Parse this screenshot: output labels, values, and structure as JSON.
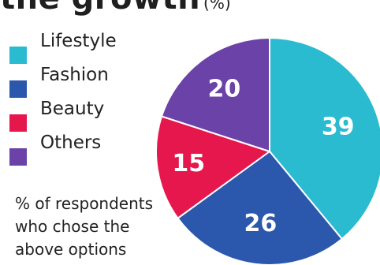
{
  "chart_data": {
    "type": "pie",
    "title": "the growth",
    "unit": "(%)",
    "note_lines": [
      "% of respondents",
      "who chose the",
      "above options"
    ],
    "slices": [
      {
        "name": "Lifestyle",
        "value": 39,
        "color": "#2bbbd0"
      },
      {
        "name": "Fashion",
        "value": 26,
        "color": "#2b58ac"
      },
      {
        "name": "Beauty",
        "value": 15,
        "color": "#e5174d"
      },
      {
        "name": "Others",
        "value": 20,
        "color": "#6a42a8"
      }
    ],
    "legend_position": "left",
    "start_angle": "top",
    "direction": "clockwise"
  }
}
